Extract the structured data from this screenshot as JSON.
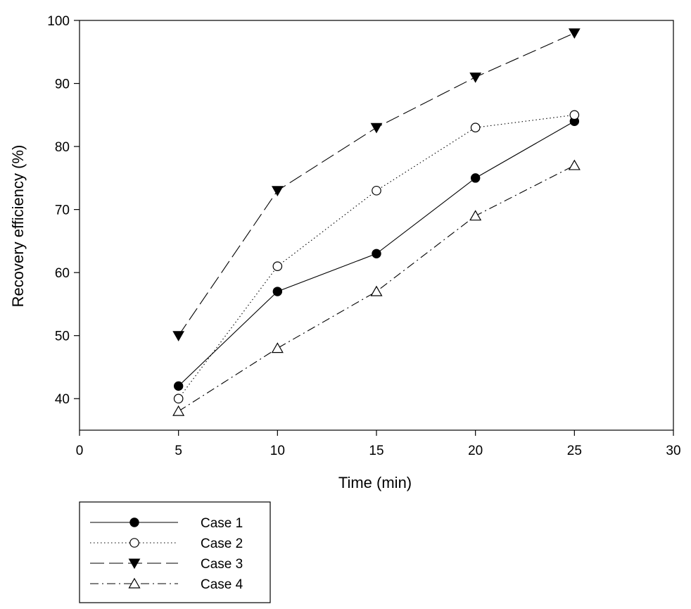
{
  "chart_data": {
    "type": "line",
    "title": "",
    "xlabel": "Time (min)",
    "ylabel": "Recovery efficiency (%)",
    "xlim": [
      0,
      30
    ],
    "ylim": [
      35,
      100
    ],
    "xticks": [
      0,
      5,
      10,
      15,
      20,
      25,
      30
    ],
    "yticks": [
      40,
      50,
      60,
      70,
      80,
      90,
      100
    ],
    "grid": false,
    "legend_position": "below",
    "x": [
      5,
      10,
      15,
      20,
      25
    ],
    "series": [
      {
        "name": "Case 1",
        "values": [
          42,
          57,
          63,
          75,
          84
        ],
        "marker": "filled-circle",
        "line": "solid"
      },
      {
        "name": "Case 2",
        "values": [
          40,
          61,
          73,
          83,
          85
        ],
        "marker": "open-circle",
        "line": "dotted"
      },
      {
        "name": "Case 3",
        "values": [
          50,
          73,
          83,
          91,
          98
        ],
        "marker": "filled-triangle-down",
        "line": "dashed"
      },
      {
        "name": "Case 4",
        "values": [
          38,
          48,
          57,
          69,
          77
        ],
        "marker": "open-triangle-up",
        "line": "dash-dot"
      }
    ]
  }
}
